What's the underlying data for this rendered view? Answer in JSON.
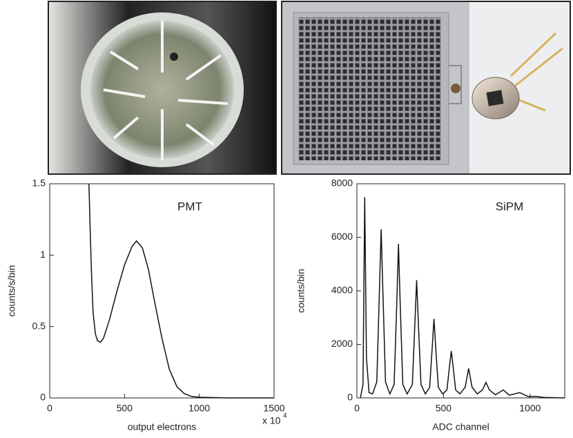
{
  "chart_data": [
    {
      "type": "line",
      "annotation": "PMT",
      "x_label": "output electrons",
      "y_label": "counts/s/bin",
      "x_label_multiplier": "x 10",
      "x_label_exponent": "4",
      "xlim": [
        0,
        1500
      ],
      "ylim": [
        0,
        1.5
      ],
      "xticks": [
        0,
        500,
        1000,
        1500
      ],
      "yticks": [
        0,
        0.5,
        1,
        1.5
      ],
      "color": "#111111",
      "x": [
        262,
        270,
        280,
        290,
        305,
        320,
        340,
        360,
        400,
        450,
        500,
        550,
        580,
        620,
        660,
        700,
        750,
        800,
        850,
        900,
        950,
        1000,
        1200,
        1500
      ],
      "values": [
        1.5,
        1.2,
        0.85,
        0.6,
        0.45,
        0.4,
        0.39,
        0.42,
        0.55,
        0.75,
        0.93,
        1.06,
        1.1,
        1.05,
        0.9,
        0.68,
        0.42,
        0.2,
        0.08,
        0.03,
        0.01,
        0.005,
        0,
        0
      ]
    },
    {
      "type": "line",
      "annotation": "SiPM",
      "x_label": "ADC channel",
      "y_label": "counts/bin",
      "xlim": [
        0,
        1200
      ],
      "ylim": [
        0,
        8000
      ],
      "xticks": [
        0,
        500,
        1000
      ],
      "yticks": [
        0,
        2000,
        4000,
        6000,
        8000
      ],
      "color": "#111111",
      "x": [
        20,
        35,
        45,
        55,
        70,
        90,
        115,
        130,
        140,
        150,
        165,
        190,
        215,
        230,
        240,
        250,
        265,
        290,
        320,
        335,
        345,
        355,
        370,
        395,
        420,
        435,
        445,
        455,
        470,
        495,
        520,
        535,
        545,
        555,
        570,
        595,
        625,
        645,
        665,
        695,
        725,
        745,
        765,
        800,
        845,
        880,
        940,
        990,
        1030,
        1080,
        1200
      ],
      "values": [
        0,
        500,
        7500,
        1500,
        200,
        150,
        600,
        4000,
        6300,
        4000,
        600,
        150,
        500,
        3500,
        5750,
        3500,
        500,
        150,
        500,
        2800,
        4400,
        2800,
        500,
        150,
        400,
        1900,
        2950,
        1900,
        400,
        150,
        300,
        1200,
        1750,
        1200,
        300,
        150,
        400,
        1100,
        400,
        150,
        300,
        580,
        300,
        120,
        300,
        100,
        200,
        50,
        60,
        20,
        0
      ]
    }
  ]
}
